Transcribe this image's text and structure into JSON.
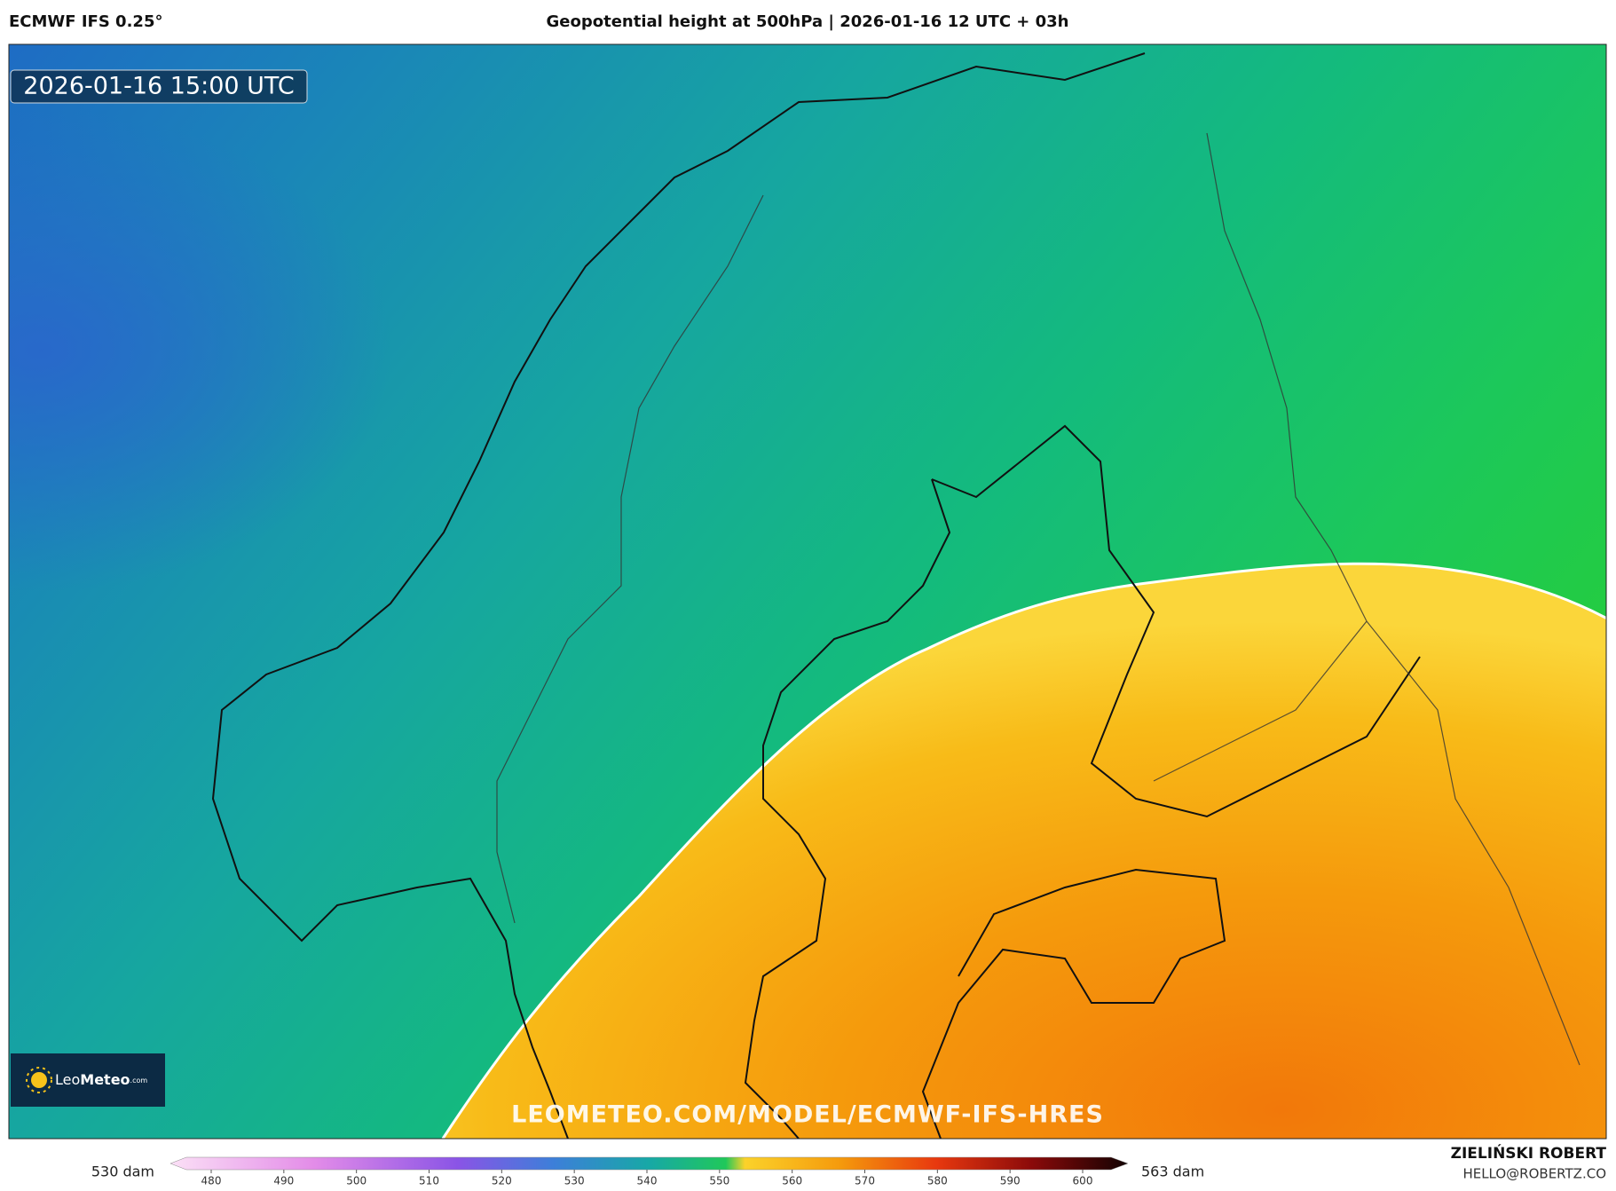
{
  "header": {
    "model": "ECMWF IFS 0.25°",
    "title": "Geopotential height at 500hPa | 2026-01-16 12 UTC + 03h"
  },
  "map": {
    "valid_time": "2026-01-16 15:00 UTC",
    "watermark": "LEOMETEO.COM/MODEL/ECMWF-IFS-HRES"
  },
  "logo": {
    "name": "Leo",
    "name_bold": "Meteo",
    "suffix": ".com"
  },
  "colorbar": {
    "min_label": "530 dam",
    "max_label": "563 dam",
    "ticks": [
      480,
      490,
      500,
      510,
      520,
      530,
      540,
      550,
      560,
      570,
      580,
      590,
      600
    ]
  },
  "footer": {
    "author": "ZIELIŃSKI ROBERT",
    "contact": "HELLO@ROBERTZ.CO"
  }
}
